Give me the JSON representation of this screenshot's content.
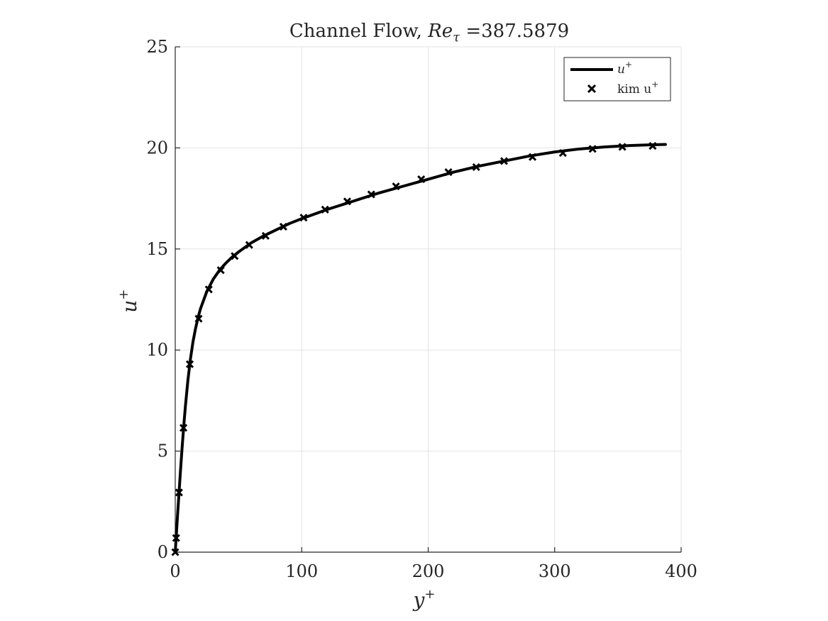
{
  "chart_data": {
    "type": "line",
    "title_prefix": "Channel Flow, ",
    "title_math": "Re",
    "title_math_sub": "τ",
    "title_suffix": " =387.5879",
    "xlabel": "y",
    "xlabel_sup": "+",
    "ylabel": "u",
    "ylabel_sup": "+",
    "xlim": [
      0,
      400
    ],
    "ylim": [
      0,
      25
    ],
    "xticks": [
      0,
      100,
      200,
      300,
      400
    ],
    "yticks": [
      0,
      5,
      10,
      15,
      20,
      25
    ],
    "xtick_labels": [
      "0",
      "100",
      "200",
      "300",
      "400"
    ],
    "ytick_labels": [
      "0",
      "5",
      "10",
      "15",
      "20",
      "25"
    ],
    "grid": true,
    "legend_position": "top-right",
    "series": [
      {
        "name": "u",
        "name_sup": "+",
        "style": "solid-line",
        "color": "#000000",
        "x": [
          0,
          0.5,
          1,
          2,
          3,
          4,
          5,
          6,
          7,
          8,
          10,
          12,
          14,
          16,
          18,
          20,
          25,
          30,
          35,
          40,
          45,
          50,
          60,
          70,
          80,
          90,
          100,
          120,
          140,
          160,
          180,
          200,
          220,
          240,
          260,
          280,
          300,
          320,
          340,
          360,
          375,
          387.6
        ],
        "y": [
          0,
          0.5,
          1.0,
          2.0,
          2.95,
          3.9,
          4.8,
          5.65,
          6.45,
          7.2,
          8.5,
          9.55,
          10.4,
          11.05,
          11.6,
          12.05,
          12.9,
          13.5,
          13.95,
          14.3,
          14.6,
          14.85,
          15.3,
          15.65,
          15.95,
          16.25,
          16.5,
          16.95,
          17.35,
          17.75,
          18.1,
          18.45,
          18.8,
          19.1,
          19.35,
          19.6,
          19.8,
          19.95,
          20.05,
          20.12,
          20.15,
          20.17
        ]
      },
      {
        "name": "kim u",
        "name_sup": "+",
        "style": "x-marker",
        "color": "#000000",
        "x": [
          0,
          0.7,
          3,
          6.5,
          11.5,
          18.5,
          26.5,
          36,
          47,
          58.5,
          71.5,
          85.5,
          101.5,
          118.5,
          136,
          155,
          174.5,
          194.5,
          216,
          238,
          260,
          282.5,
          306.5,
          330,
          353.5,
          377.5
        ],
        "y": [
          0,
          0.7,
          2.95,
          6.15,
          9.3,
          11.55,
          13.0,
          13.95,
          14.65,
          15.2,
          15.65,
          16.1,
          16.55,
          16.95,
          17.35,
          17.7,
          18.1,
          18.45,
          18.8,
          19.05,
          19.35,
          19.55,
          19.75,
          19.95,
          20.05,
          20.1
        ]
      }
    ]
  }
}
